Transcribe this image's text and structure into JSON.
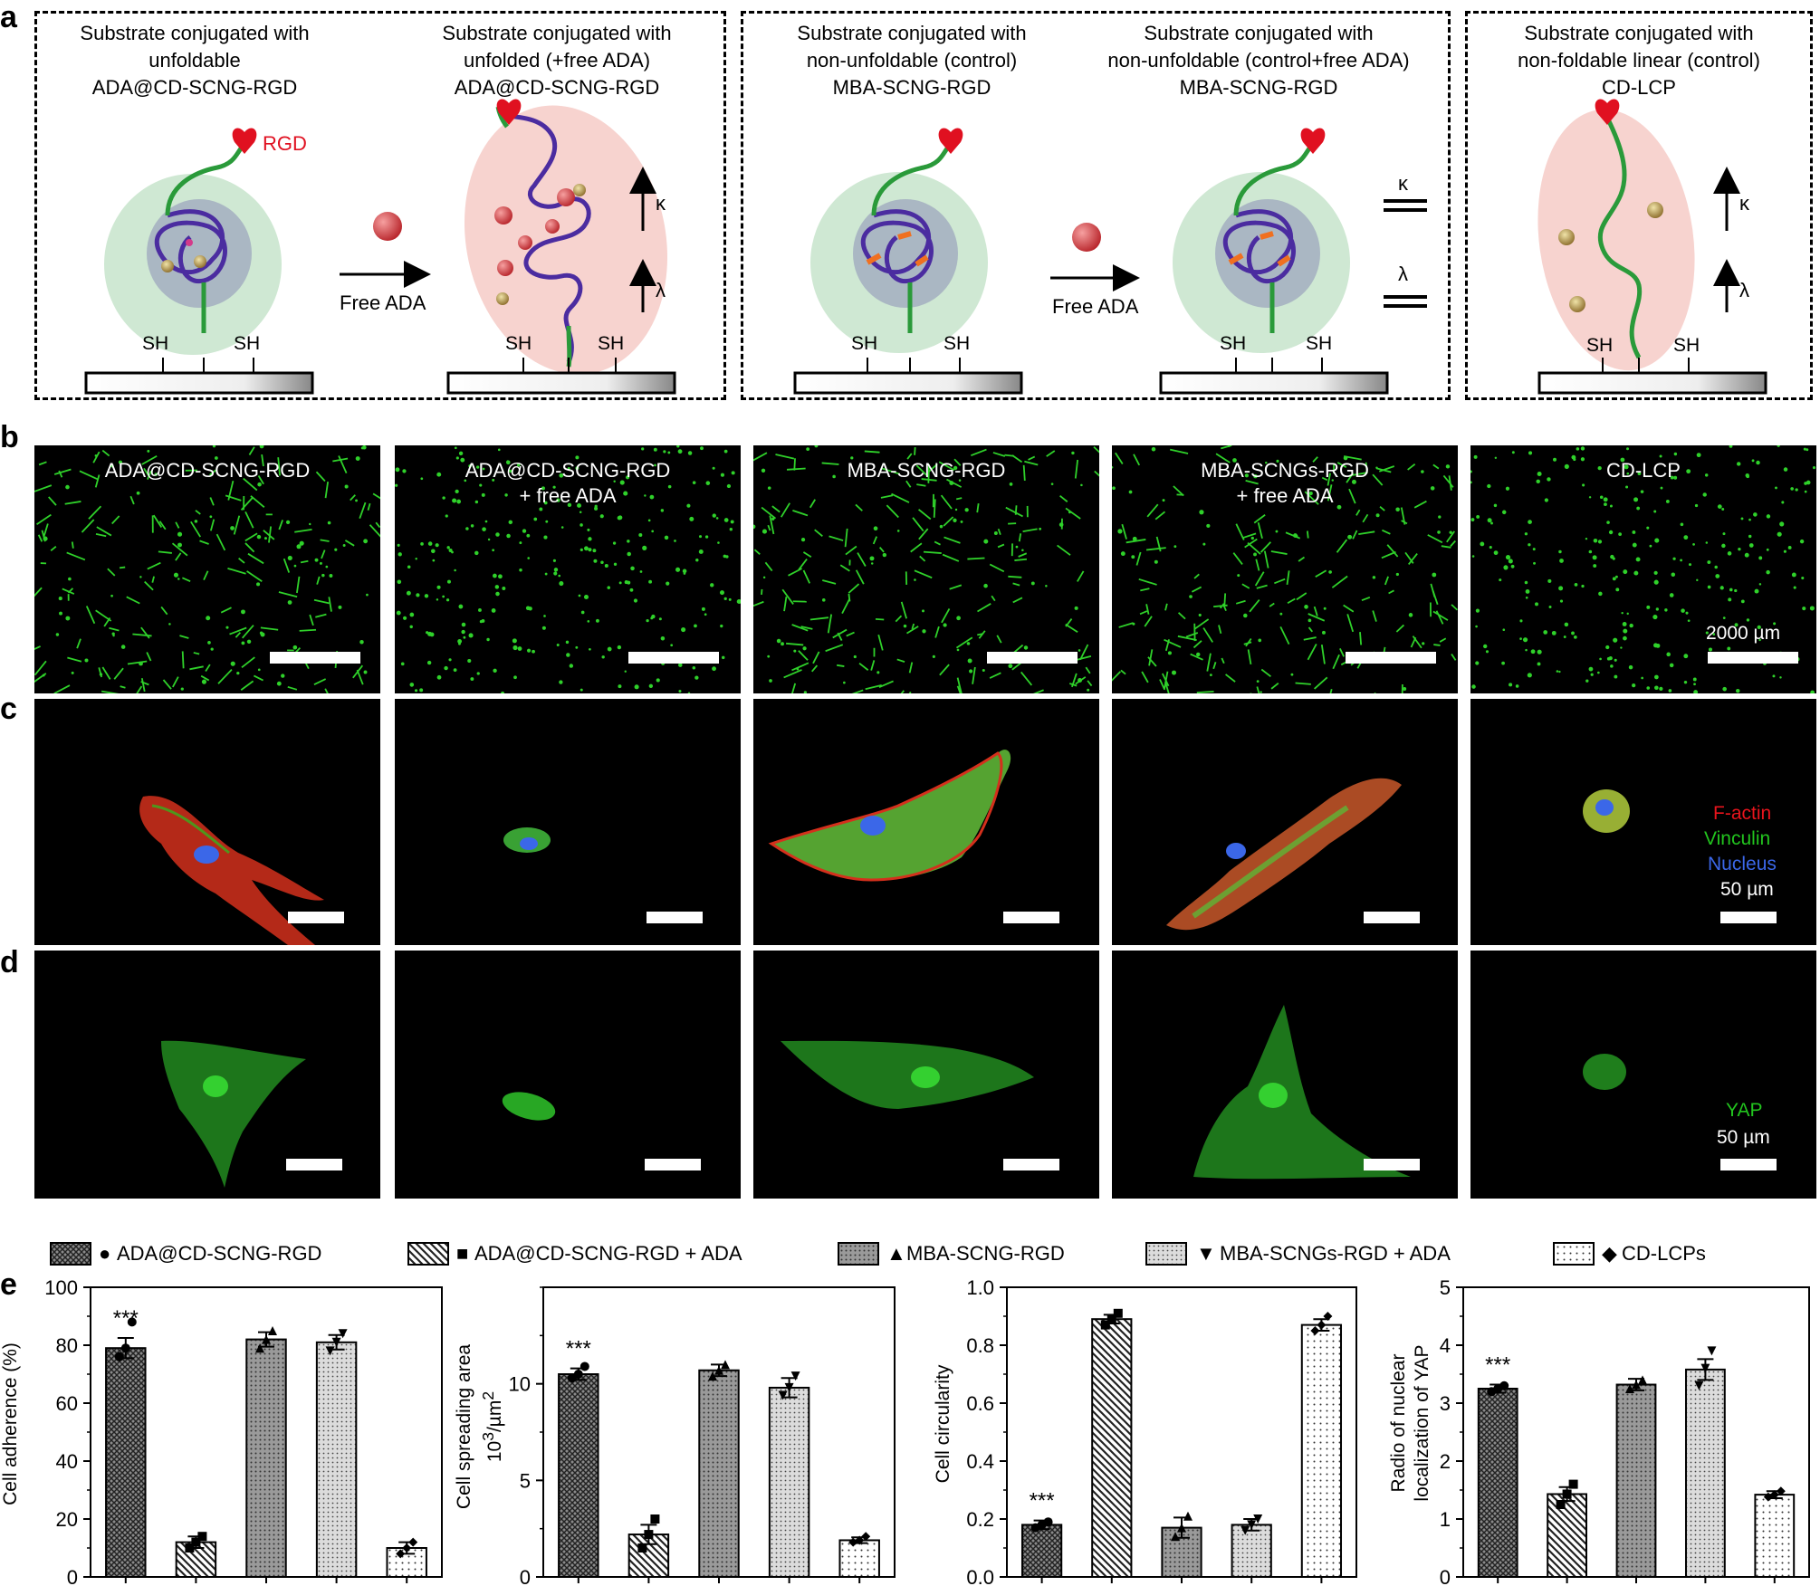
{
  "panel_labels": {
    "a": "a",
    "b": "b",
    "c": "c",
    "d": "d",
    "e": "e"
  },
  "schemes": [
    {
      "title": [
        "Substrate conjugated with",
        "unfoldable",
        "ADA@CD-SCNG-RGD"
      ]
    },
    {
      "title": [
        "Substrate conjugated with",
        "unfolded (+free ADA)",
        "ADA@CD-SCNG-RGD"
      ]
    },
    {
      "title": [
        "Substrate conjugated with",
        "non-unfoldable (control)",
        "MBA-SCNG-RGD"
      ]
    },
    {
      "title": [
        "Substrate conjugated with",
        "non-unfoldable (control+free ADA)",
        "MBA-SCNG-RGD"
      ]
    },
    {
      "title": [
        "Substrate conjugated with",
        "non-foldable linear (control)",
        "CD-LCP"
      ]
    }
  ],
  "scheme_labels": {
    "sh": "SH",
    "rgd": "RGD",
    "free_ada": "Free ADA",
    "kappa": "κ",
    "lambda": "λ"
  },
  "micro_b_titles": [
    [
      "ADA@CD-SCNG-RGD",
      ""
    ],
    [
      "ADA@CD-SCNG-RGD",
      "+ free ADA"
    ],
    [
      "MBA-SCNG-RGD",
      ""
    ],
    [
      "MBA-SCNGs-RGD",
      "+ free ADA"
    ],
    [
      "CD-LCP",
      ""
    ]
  ],
  "scale_b": "2000 µm",
  "stain_labels": {
    "factin": "F-actin",
    "vinculin": "Vinculin",
    "nucleus": "Nucleus",
    "yap": "YAP",
    "scale": "50 µm"
  },
  "colors": {
    "factin": "#e8141c",
    "vinculin": "#22c41e",
    "nucleus": "#3b67e8",
    "cell_green": "#2fd12a"
  },
  "legend": [
    {
      "marker": "●",
      "label": "ADA@CD-SCNG-RGD",
      "pattern": "cross"
    },
    {
      "marker": "■",
      "label": "ADA@CD-SCNG-RGD + ADA",
      "pattern": "diag"
    },
    {
      "marker": "▲",
      "label": "MBA-SCNG-RGD",
      "pattern": "dots-dense"
    },
    {
      "marker": "▼",
      "label": "MBA-SCNGs-RGD + ADA",
      "pattern": "dots-light"
    },
    {
      "marker": "◆",
      "label": "CD-LCPs",
      "pattern": "dots-sparse"
    }
  ],
  "chart_data": [
    {
      "type": "bar",
      "ylabel": "Cell adherence (%)",
      "ylim": [
        0,
        100
      ],
      "yticks": [
        0,
        20,
        40,
        60,
        80,
        100
      ],
      "categories": [
        "ADA@CD-SCNG-RGD",
        "ADA@CD-SCNG-RGD + ADA",
        "MBA-SCNG-RGD",
        "MBA-SCNGs-RGD + ADA",
        "CD-LCPs"
      ],
      "values": [
        79,
        12,
        82,
        81,
        10
      ],
      "errors": [
        3.5,
        2,
        2.5,
        2.5,
        2
      ],
      "points": [
        [
          76,
          79,
          88
        ],
        [
          10,
          12,
          14
        ],
        [
          79,
          82,
          85
        ],
        [
          78,
          81,
          84
        ],
        [
          8,
          10,
          12
        ]
      ],
      "annotation": "***"
    },
    {
      "type": "bar",
      "ylabel": "Cell spreading area 10³/µm²",
      "ylim": [
        0,
        15
      ],
      "yticks": [
        0,
        5,
        10
      ],
      "categories": [
        "ADA@CD-SCNG-RGD",
        "ADA@CD-SCNG-RGD + ADA",
        "MBA-SCNG-RGD",
        "MBA-SCNGs-RGD + ADA",
        "CD-LCPs"
      ],
      "values": [
        10.5,
        2.2,
        10.7,
        9.8,
        1.9
      ],
      "errors": [
        0.3,
        0.5,
        0.3,
        0.5,
        0.15
      ],
      "points": [
        [
          10.3,
          10.5,
          10.9
        ],
        [
          1.5,
          2.2,
          3.0
        ],
        [
          10.4,
          10.7,
          11.0
        ],
        [
          9.4,
          9.8,
          10.4
        ],
        [
          1.8,
          1.9,
          2.1
        ]
      ],
      "annotation": "***"
    },
    {
      "type": "bar",
      "ylabel": "Cell circularity",
      "ylim": [
        0,
        1.0
      ],
      "yticks": [
        0.0,
        0.2,
        0.4,
        0.6,
        0.8,
        1.0
      ],
      "categories": [
        "ADA@CD-SCNG-RGD",
        "ADA@CD-SCNG-RGD + ADA",
        "MBA-SCNG-RGD",
        "MBA-SCNGs-RGD + ADA",
        "CD-LCPs"
      ],
      "values": [
        0.18,
        0.89,
        0.17,
        0.18,
        0.87
      ],
      "errors": [
        0.015,
        0.015,
        0.035,
        0.02,
        0.02
      ],
      "points": [
        [
          0.17,
          0.18,
          0.19
        ],
        [
          0.87,
          0.89,
          0.91
        ],
        [
          0.14,
          0.17,
          0.21
        ],
        [
          0.16,
          0.18,
          0.2
        ],
        [
          0.85,
          0.87,
          0.9
        ]
      ],
      "annotation": "***"
    },
    {
      "type": "bar",
      "ylabel": "Radio of nuclear localization of YAP",
      "ylim": [
        0,
        5
      ],
      "yticks": [
        0,
        1,
        2,
        3,
        4,
        5
      ],
      "categories": [
        "ADA@CD-SCNG-RGD",
        "ADA@CD-SCNG-RGD + ADA",
        "MBA-SCNG-RGD",
        "MBA-SCNGs-RGD + ADA",
        "CD-LCPs"
      ],
      "values": [
        3.25,
        1.43,
        3.32,
        3.58,
        1.42
      ],
      "errors": [
        0.07,
        0.12,
        0.1,
        0.18,
        0.06
      ],
      "points": [
        [
          3.2,
          3.25,
          3.3
        ],
        [
          1.25,
          1.43,
          1.6
        ],
        [
          3.25,
          3.32,
          3.4
        ],
        [
          3.3,
          3.6,
          3.9
        ],
        [
          1.38,
          1.42,
          1.48
        ]
      ],
      "annotation": "***"
    }
  ]
}
